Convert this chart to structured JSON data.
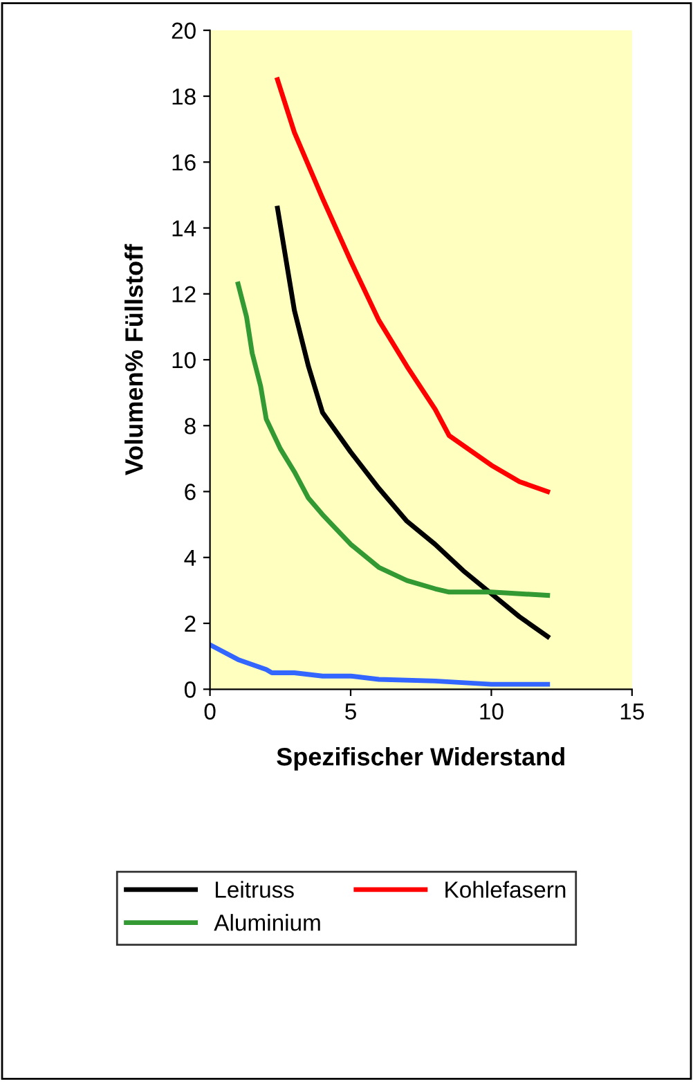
{
  "chart_data": {
    "type": "line",
    "xlabel": "Spezifischer Widerstand",
    "ylabel": "Volumen% Füllstoff",
    "xlim": [
      0,
      15
    ],
    "ylim": [
      0,
      20
    ],
    "xticks": [
      0,
      5,
      10,
      15
    ],
    "yticks": [
      0,
      2,
      4,
      6,
      8,
      10,
      12,
      14,
      16,
      18,
      20
    ],
    "grid": false,
    "legend": "bottom",
    "marker": "none",
    "line_style": "solid",
    "series": [
      {
        "color": "#3366ff",
        "x": [
          0,
          1,
          2,
          2.2,
          3,
          4,
          5,
          6,
          8,
          10,
          12
        ],
        "values": [
          1.35,
          0.9,
          0.6,
          0.5,
          0.5,
          0.4,
          0.4,
          0.3,
          0.25,
          0.15,
          0.15
        ]
      },
      {
        "name": "Leitruss",
        "color": "#000000",
        "x": [
          2.4,
          3,
          3.5,
          4,
          5,
          6,
          7,
          8,
          9,
          10,
          11,
          12
        ],
        "values": [
          14.6,
          11.5,
          9.8,
          8.4,
          7.2,
          6.1,
          5.1,
          4.4,
          3.6,
          2.9,
          2.2,
          1.6
        ]
      },
      {
        "name": "Aluminium",
        "color": "#339933",
        "x": [
          1,
          1.3,
          1.5,
          1.8,
          2,
          2.5,
          3,
          3.5,
          4,
          5,
          6,
          7,
          8,
          8.5,
          10,
          12
        ],
        "values": [
          12.3,
          11.3,
          10.2,
          9.2,
          8.2,
          7.3,
          6.6,
          5.8,
          5.3,
          4.4,
          3.7,
          3.3,
          3.05,
          2.95,
          2.95,
          2.85
        ]
      },
      {
        "name": "Kohlefasern",
        "color": "#ff0000",
        "x": [
          2.4,
          3,
          4,
          5,
          6,
          7,
          8,
          8.5,
          10,
          11,
          12
        ],
        "values": [
          18.5,
          16.9,
          14.9,
          13.0,
          11.2,
          9.8,
          8.5,
          7.7,
          6.8,
          6.3,
          6.0
        ]
      }
    ]
  }
}
